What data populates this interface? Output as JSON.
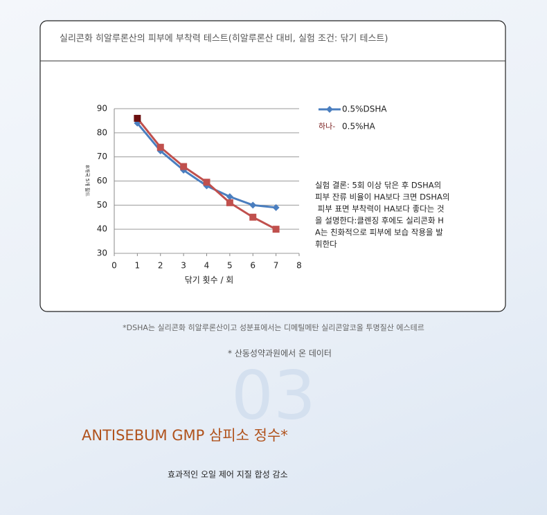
{
  "chart_data": {
    "type": "line",
    "title": "실리콘화 히알루론산의 피부에 부착력 테스트(히알루론산 대비, 실험 조건: 닦기 테스트)",
    "x_label": "닦기 횟수 / 회",
    "y_label": "8개국 5개 필드",
    "x": [
      1,
      2,
      3,
      4,
      5,
      6,
      7
    ],
    "series": [
      {
        "name": "0.5%DSHA",
        "color": "#4a7ebf",
        "marker": "diamond",
        "values": [
          84,
          72.5,
          64.5,
          58,
          53.5,
          50,
          49
        ]
      },
      {
        "name": "0.5%HA",
        "color": "#c0504d",
        "marker": "square",
        "marker_label": "하나-",
        "values": [
          86,
          74,
          66,
          59.5,
          51,
          45,
          40
        ]
      }
    ],
    "xlim": [
      0,
      8
    ],
    "xticks": [
      0,
      1,
      2,
      3,
      4,
      5,
      6,
      7,
      8
    ],
    "ylim": [
      30,
      90
    ],
    "yticks": [
      30,
      40,
      50,
      60,
      70,
      80,
      90
    ],
    "grid": true,
    "annotation": [
      "실험 결론: 5회 이상 닦은 후 DSHA의",
      "피부 잔류 비율이 HA보다 크면 DSHA의",
      " 피부 표면 부착력이 HA보다 좋다는 것",
      "을 설명한다:클렌징 후에도 실리콘화 H",
      "A는 친화적으로 피부에 보습 작용을 발",
      "휘한다"
    ]
  },
  "footnote": "*DSHA는 실리콘화 히알루론산이고 성분표에서는 디메틸메탄 실리콘알코올 투명질산 에스테르",
  "source": "* 산동성약과원에서 온 데이터",
  "section": {
    "number": "03",
    "heading": "ANTISEBUM GMP 삼피소 정수*",
    "subheading": "효과적인 오일 제어 지질 합성 감소"
  }
}
